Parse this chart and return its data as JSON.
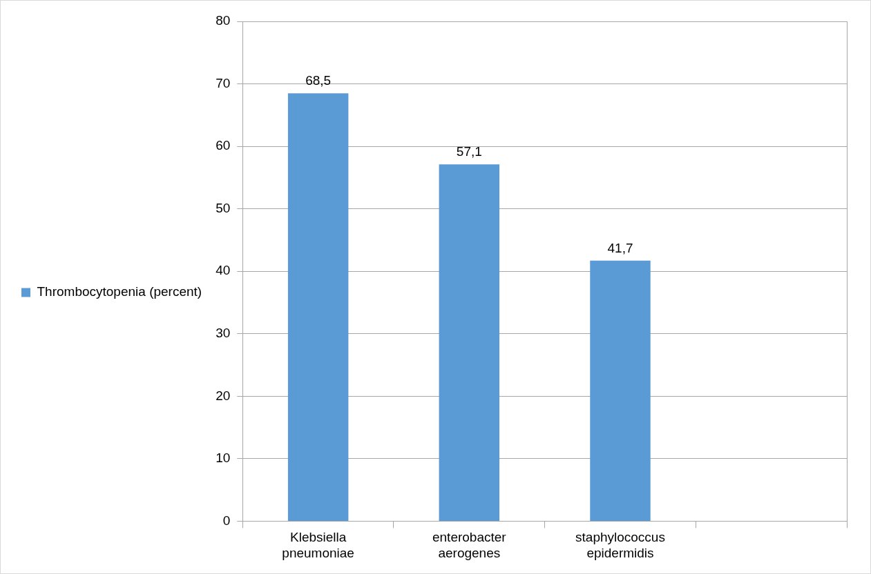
{
  "chart_data": {
    "type": "bar",
    "categories": [
      "Klebsiella pneumoniae",
      "enterobacter aerogenes",
      "staphylococcus epidermidis",
      null
    ],
    "series": [
      {
        "name": "Thrombocytopenia (percent)",
        "color": "#5b9bd5",
        "values": [
          68.5,
          57.1,
          41.7,
          null
        ],
        "value_labels": [
          "68,5",
          "57,1",
          "41,7",
          null
        ]
      }
    ],
    "ylim": [
      0,
      80
    ],
    "yticks": [
      0,
      10,
      20,
      30,
      40,
      50,
      60,
      70,
      80
    ],
    "grid": "y",
    "legend": "left"
  }
}
